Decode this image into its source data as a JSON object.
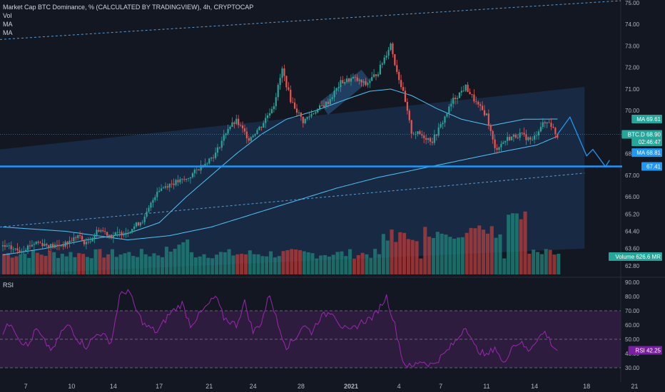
{
  "legend": {
    "title": "Market Cap BTC Dominance, % (CALCULATED BY TRADINGVIEW), 4h, CRYPTOCAP",
    "vol": "Vol",
    "ma1": "MA",
    "ma2": "MA"
  },
  "rsi_label": "RSI",
  "colors": {
    "background": "#131722",
    "up": "#26a69a",
    "down": "#ef5350",
    "vol_up": "#1f7f78",
    "vol_down": "#b23b3b",
    "ma_fast": "#4fc3f7",
    "ma_slow": "#4fc3f7",
    "channel_fill": "#1e3a5f",
    "support_line": "#2196f3",
    "rsi_line": "#9c27b0",
    "rsi_band": "#3b1f4a",
    "projection": "#2196f3",
    "label_teal": "#26a69a",
    "label_blue": "#2196f3",
    "label_purple": "#7b1fa2"
  },
  "chart_data": [
    {
      "type": "candlestick",
      "title": "Market Cap BTC Dominance, % (CALCULATED BY TRADINGVIEW), 4h, CRYPTOCAP",
      "xticks": [
        "7",
        "10",
        "14",
        "17",
        "21",
        "24",
        "28",
        "2021",
        "4",
        "7",
        "11",
        "14",
        "18",
        "21"
      ],
      "yticks": [
        "75.00",
        "74.00",
        "73.00",
        "72.00",
        "71.00",
        "70.00",
        "69.00",
        "68.00",
        "67.00",
        "66.00",
        "65.20",
        "64.40",
        "63.60",
        "62.80"
      ],
      "ylim": [
        62.4,
        75.0
      ],
      "price_anchors": [
        [
          0,
          63.7
        ],
        [
          8,
          63.5
        ],
        [
          16,
          63.9
        ],
        [
          24,
          63.7
        ],
        [
          30,
          63.8
        ],
        [
          36,
          64.2
        ],
        [
          40,
          63.8
        ],
        [
          46,
          64.5
        ],
        [
          52,
          64.2
        ],
        [
          60,
          64.4
        ],
        [
          68,
          65.0
        ],
        [
          74,
          66.3
        ],
        [
          80,
          66.6
        ],
        [
          88,
          66.8
        ],
        [
          96,
          67.5
        ],
        [
          102,
          68.0
        ],
        [
          108,
          69.2
        ],
        [
          112,
          69.5
        ],
        [
          118,
          68.7
        ],
        [
          124,
          69.3
        ],
        [
          130,
          70.3
        ],
        [
          134,
          71.9
        ],
        [
          138,
          70.5
        ],
        [
          144,
          69.5
        ],
        [
          150,
          70.0
        ],
        [
          156,
          70.4
        ],
        [
          162,
          71.3
        ],
        [
          168,
          71.5
        ],
        [
          174,
          71.2
        ],
        [
          180,
          71.8
        ],
        [
          186,
          73.1
        ],
        [
          188,
          72.2
        ],
        [
          192,
          70.8
        ],
        [
          196,
          69.0
        ],
        [
          200,
          68.9
        ],
        [
          206,
          68.6
        ],
        [
          210,
          69.3
        ],
        [
          216,
          70.5
        ],
        [
          222,
          71.1
        ],
        [
          228,
          70.2
        ],
        [
          232,
          69.8
        ],
        [
          236,
          68.2
        ],
        [
          242,
          68.7
        ],
        [
          248,
          68.9
        ],
        [
          254,
          68.6
        ],
        [
          258,
          69.3
        ],
        [
          262,
          69.5
        ],
        [
          266,
          68.8
        ]
      ],
      "candle_count": 267,
      "ma_fast": {
        "name": "MA",
        "value": "69.61",
        "anchors": [
          [
            0,
            63.3
          ],
          [
            20,
            63.6
          ],
          [
            40,
            64.0
          ],
          [
            60,
            64.3
          ],
          [
            75,
            64.8
          ],
          [
            88,
            66.0
          ],
          [
            100,
            67.0
          ],
          [
            112,
            68.0
          ],
          [
            124,
            68.9
          ],
          [
            136,
            69.6
          ],
          [
            150,
            70.0
          ],
          [
            164,
            70.5
          ],
          [
            176,
            70.9
          ],
          [
            186,
            71.0
          ],
          [
            196,
            70.7
          ],
          [
            208,
            70.1
          ],
          [
            220,
            69.6
          ],
          [
            234,
            69.3
          ],
          [
            250,
            69.6
          ],
          [
            266,
            69.61
          ]
        ]
      },
      "ma_slow": {
        "name": "MA",
        "value": "68.81",
        "anchors": [
          [
            0,
            64.6
          ],
          [
            30,
            64.4
          ],
          [
            60,
            64.0
          ],
          [
            80,
            64.2
          ],
          [
            100,
            64.6
          ],
          [
            120,
            65.2
          ],
          [
            140,
            65.8
          ],
          [
            160,
            66.4
          ],
          [
            180,
            66.9
          ],
          [
            200,
            67.3
          ],
          [
            220,
            67.7
          ],
          [
            240,
            68.1
          ],
          [
            256,
            68.4
          ],
          [
            266,
            68.81
          ]
        ]
      },
      "channel": {
        "upper_start": 68.2,
        "upper_end": 71.1,
        "lower_start": 62.4,
        "lower_end": 63.6
      },
      "support_level": "67.41",
      "tags": [
        {
          "label": "MA",
          "value": "69.61",
          "color": "label_teal"
        },
        {
          "label": "BTC.D",
          "value": "68.90",
          "color": "label_teal"
        },
        {
          "label": "",
          "value": "02:46:47",
          "color": "label_teal"
        },
        {
          "label": "MA",
          "value": "68.81",
          "color": "label_blue"
        },
        {
          "label": "",
          "value": "67.41",
          "color": "label_blue"
        },
        {
          "label": "Volume",
          "value": "626.6 MR",
          "color": "label_teal"
        }
      ],
      "projection_points": [
        [
          266,
          68.9
        ],
        [
          272,
          69.7
        ],
        [
          280,
          67.9
        ],
        [
          283,
          68.2
        ],
        [
          289,
          67.4
        ],
        [
          291,
          67.7
        ]
      ]
    },
    {
      "type": "line",
      "title": "RSI",
      "yticks": [
        "90.00",
        "80.00",
        "70.00",
        "60.00",
        "50.00",
        "40.00",
        "30.00"
      ],
      "ylim": [
        28,
        92
      ],
      "bands": [
        30,
        70
      ],
      "current": {
        "label": "RSI",
        "value": "42.25"
      },
      "rsi_anchors": [
        [
          0,
          55
        ],
        [
          4,
          62
        ],
        [
          8,
          50
        ],
        [
          12,
          45
        ],
        [
          16,
          57
        ],
        [
          20,
          48
        ],
        [
          24,
          42
        ],
        [
          28,
          55
        ],
        [
          32,
          60
        ],
        [
          36,
          50
        ],
        [
          40,
          45
        ],
        [
          46,
          55
        ],
        [
          52,
          48
        ],
        [
          56,
          80
        ],
        [
          60,
          85
        ],
        [
          64,
          70
        ],
        [
          68,
          60
        ],
        [
          74,
          55
        ],
        [
          80,
          68
        ],
        [
          86,
          75
        ],
        [
          90,
          60
        ],
        [
          96,
          70
        ],
        [
          102,
          80
        ],
        [
          106,
          65
        ],
        [
          112,
          60
        ],
        [
          116,
          76
        ],
        [
          120,
          55
        ],
        [
          124,
          62
        ],
        [
          128,
          82
        ],
        [
          132,
          60
        ],
        [
          136,
          45
        ],
        [
          140,
          50
        ],
        [
          144,
          60
        ],
        [
          148,
          55
        ],
        [
          152,
          65
        ],
        [
          158,
          70
        ],
        [
          162,
          60
        ],
        [
          166,
          55
        ],
        [
          172,
          62
        ],
        [
          178,
          66
        ],
        [
          184,
          80
        ],
        [
          188,
          60
        ],
        [
          192,
          34
        ],
        [
          196,
          30
        ],
        [
          200,
          35
        ],
        [
          206,
          32
        ],
        [
          212,
          40
        ],
        [
          218,
          50
        ],
        [
          222,
          60
        ],
        [
          226,
          45
        ],
        [
          232,
          38
        ],
        [
          236,
          45
        ],
        [
          240,
          32
        ],
        [
          244,
          45
        ],
        [
          248,
          48
        ],
        [
          252,
          42
        ],
        [
          256,
          50
        ],
        [
          260,
          55
        ],
        [
          264,
          45
        ],
        [
          266,
          42.25
        ]
      ]
    }
  ]
}
